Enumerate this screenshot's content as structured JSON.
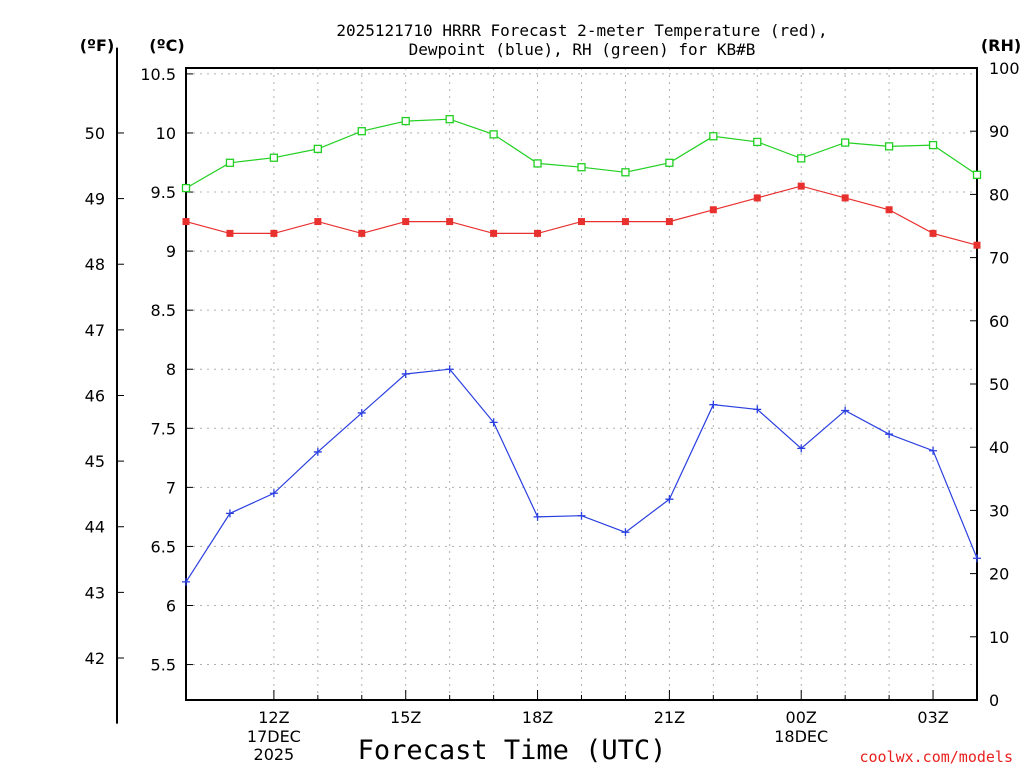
{
  "chart_data": {
    "type": "line",
    "title_line1": "2025121710 HRRR Forecast 2-meter Temperature (red),",
    "title_line2": "Dewpoint (blue), RH (green) for KB#B",
    "units": {
      "f": "(ºF)",
      "c": "(ºC)",
      "rh": "(RH)"
    },
    "xlabel": "Forecast Time (UTC)",
    "credit": "coolwx.com/models",
    "x_hours": [
      10,
      11,
      12,
      13,
      14,
      15,
      16,
      17,
      18,
      19,
      20,
      21,
      22,
      23,
      24,
      25,
      26,
      27,
      28
    ],
    "x_range": [
      10,
      28
    ],
    "x_ticks": [
      {
        "hour": 12,
        "label": "12Z"
      },
      {
        "hour": 15,
        "label": "15Z"
      },
      {
        "hour": 18,
        "label": "18Z"
      },
      {
        "hour": 21,
        "label": "21Z"
      },
      {
        "hour": 24,
        "label": "00Z"
      },
      {
        "hour": 27,
        "label": "03Z"
      }
    ],
    "x_minor_hours": [
      13,
      14,
      16,
      17,
      19,
      20,
      22,
      23,
      25,
      26
    ],
    "date_labels": [
      {
        "hour": 12,
        "line1": "17DEC",
        "line2": "2025"
      },
      {
        "hour": 24,
        "line1": "18DEC",
        "line2": ""
      }
    ],
    "y_celsius_range": [
      5.2,
      10.55
    ],
    "y_celsius_ticks": [
      "5.5",
      "6",
      "6.5",
      "7",
      "7.5",
      "8",
      "8.5",
      "9",
      "9.5",
      "10",
      "10.5"
    ],
    "y_fahrenheit_ticks": [
      "42",
      "43",
      "44",
      "45",
      "46",
      "47",
      "48",
      "49",
      "50"
    ],
    "y_rh_range": [
      0,
      100
    ],
    "y_rh_ticks": [
      "0",
      "10",
      "20",
      "30",
      "40",
      "50",
      "60",
      "70",
      "80",
      "90",
      "100"
    ],
    "series": [
      {
        "name": "Temperature",
        "units": "C",
        "color": "#e8302e",
        "marker": "filled-square",
        "values": [
          9.25,
          9.15,
          9.15,
          9.25,
          9.15,
          9.25,
          9.25,
          9.15,
          9.15,
          9.25,
          9.25,
          9.25,
          9.35,
          9.45,
          9.55,
          9.45,
          9.35,
          9.15,
          9.05
        ]
      },
      {
        "name": "Dewpoint",
        "units": "C",
        "color": "#2a3fe0",
        "marker": "plus",
        "values": [
          6.2,
          6.78,
          6.95,
          7.3,
          7.63,
          7.96,
          8.0,
          7.55,
          6.75,
          6.76,
          6.62,
          6.9,
          7.7,
          7.66,
          7.33,
          7.65,
          7.45,
          7.31,
          6.4
        ]
      },
      {
        "name": "RH",
        "units": "%",
        "color": "#22d022",
        "marker": "open-square",
        "values": [
          81.0,
          85.0,
          85.8,
          87.2,
          90.0,
          91.6,
          91.9,
          89.5,
          84.9,
          84.3,
          83.5,
          85.0,
          89.2,
          88.3,
          85.7,
          88.2,
          87.6,
          87.8,
          83.1
        ]
      }
    ]
  }
}
